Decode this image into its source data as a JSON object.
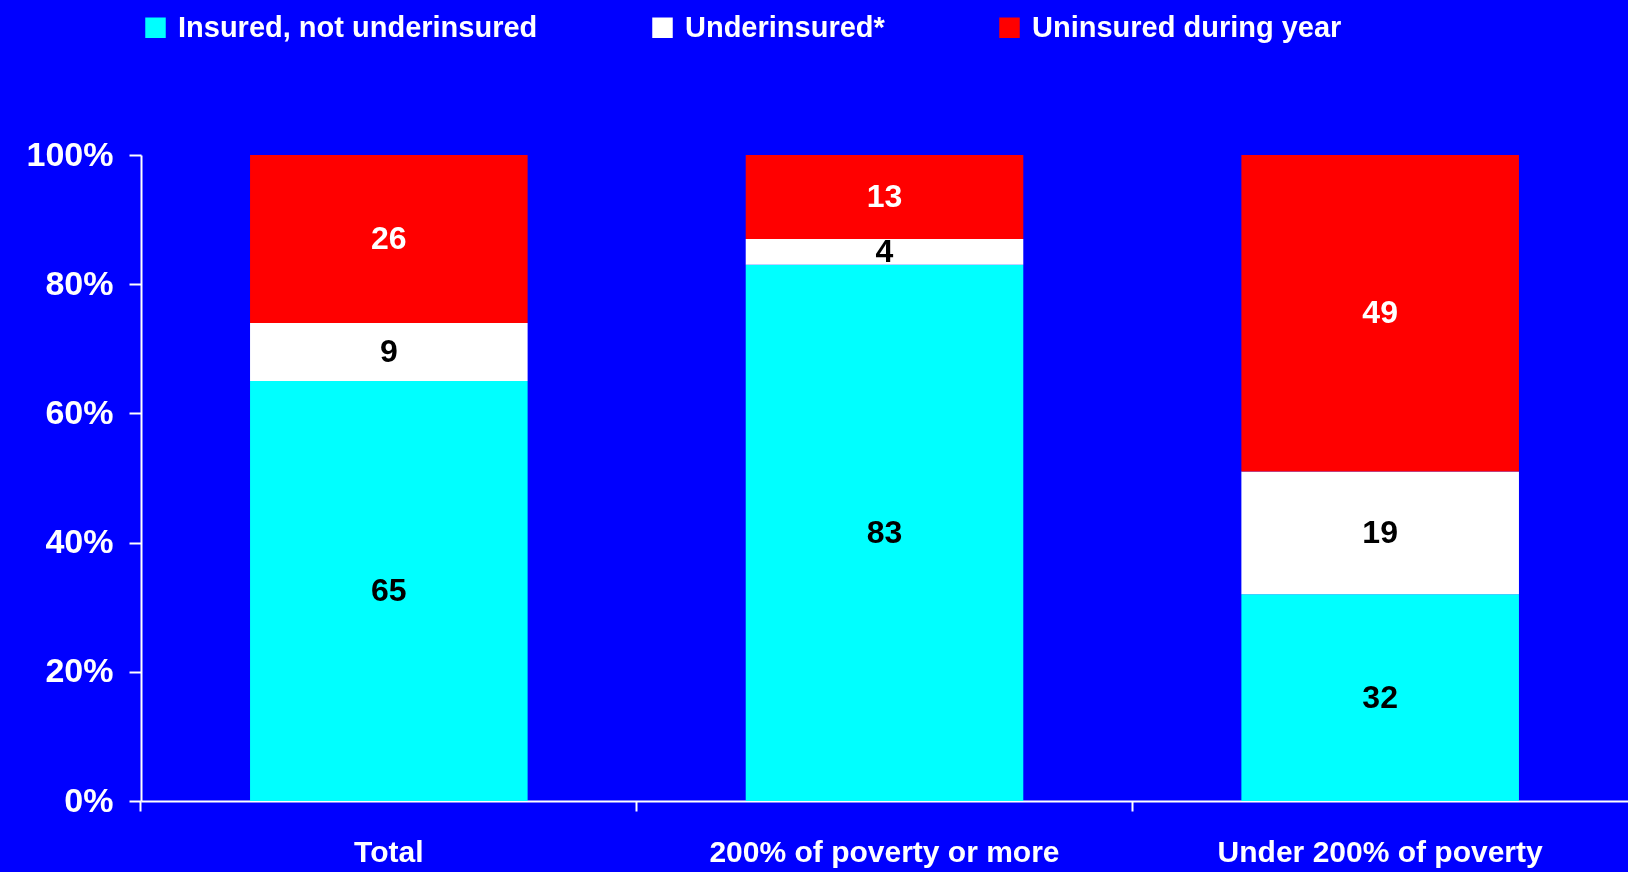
{
  "chart_data": {
    "type": "bar",
    "stacked": true,
    "categories": [
      "Total",
      "200% of poverty or more",
      "Under 200% of poverty"
    ],
    "series": [
      {
        "name": "Insured, not underinsured",
        "color": "#00ffff",
        "values": [
          65,
          83,
          32
        ]
      },
      {
        "name": "Underinsured*",
        "color": "#ffffff",
        "values": [
          9,
          4,
          19
        ]
      },
      {
        "name": "Uninsured during year",
        "color": "#ff0000",
        "values": [
          26,
          13,
          49
        ]
      }
    ],
    "ylim": [
      0,
      100
    ],
    "yticks": [
      {
        "value": 0,
        "label": "0%"
      },
      {
        "value": 20,
        "label": "20%"
      },
      {
        "value": 40,
        "label": "40%"
      },
      {
        "value": 60,
        "label": "60%"
      },
      {
        "value": 80,
        "label": "80%"
      },
      {
        "value": 100,
        "label": "100%"
      }
    ],
    "legend": "top",
    "data_labels": true
  }
}
